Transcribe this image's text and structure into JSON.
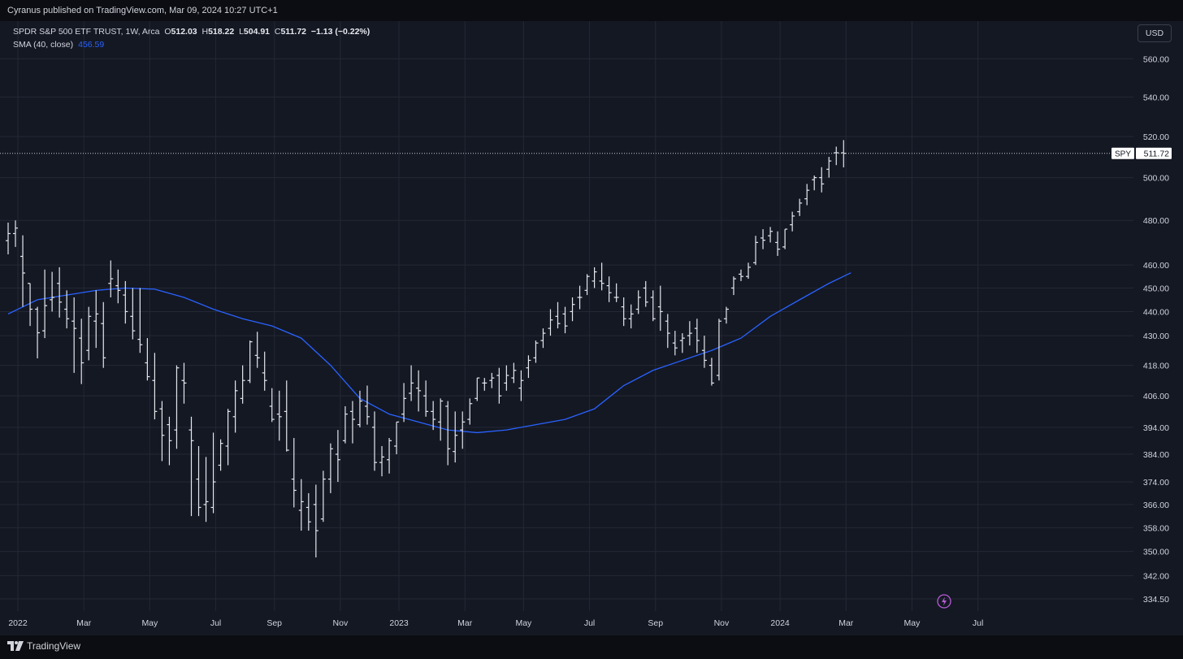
{
  "header": {
    "publisher": "Cyranus published on TradingView.com, Mar 09, 2024 10:27 UTC+1"
  },
  "legend": {
    "symbol": "SPDR S&P 500 ETF TRUST, 1W, Arca",
    "o_label": "O",
    "o_value": "512.03",
    "h_label": "H",
    "h_value": "518.22",
    "l_label": "L",
    "l_value": "504.91",
    "c_label": "C",
    "c_value": "511.72",
    "change": "−1.13 (−0.22%)",
    "indicator": "SMA (40, close)",
    "indicator_value": "456.59"
  },
  "currency_button": "USD",
  "footer": {
    "brand": "TradingView"
  },
  "colors": {
    "background": "#141823",
    "bars": "#e6e8ee",
    "sma": "#2962ff",
    "grid": "#232835",
    "price_line": "#c9ccd4"
  },
  "chart_data": {
    "type": "ohlc-bar",
    "title": "SPDR S&P 500 ETF TRUST, 1W, Arca",
    "interval": "1W",
    "y_scale": "log",
    "ylim": [
      330,
      575
    ],
    "y_ticks": [
      "560.00",
      "540.00",
      "520.00",
      "500.00",
      "480.00",
      "460.00",
      "450.00",
      "440.00",
      "430.00",
      "418.00",
      "406.00",
      "394.00",
      "384.00",
      "374.00",
      "366.00",
      "358.00",
      "350.00",
      "342.00",
      "334.50"
    ],
    "x_ticks": [
      "2022",
      "Mar",
      "May",
      "Jul",
      "Sep",
      "Nov",
      "2023",
      "Mar",
      "May",
      "Jul",
      "Sep",
      "Nov",
      "2024",
      "Mar",
      "May",
      "Jul"
    ],
    "x_tick_weeks": [
      0,
      9,
      18,
      27,
      35,
      44,
      52,
      61,
      69,
      78,
      87,
      96,
      104,
      113,
      122,
      131
    ],
    "last_price_label": {
      "symbol": "SPY",
      "value": "511.72"
    },
    "grid": true,
    "series": [
      {
        "name": "SPY",
        "ohlc": [
          [
            470.8,
            479.0,
            464.7,
            474.0
          ],
          [
            474.0,
            480.0,
            468.0,
            476.5
          ],
          [
            463.8,
            473.2,
            442.0,
            456.5
          ],
          [
            452.0,
            452.0,
            434.0,
            441.0
          ],
          [
            441.0,
            442.0,
            420.8,
            431.2
          ],
          [
            432.0,
            458.0,
            429.0,
            442.5
          ],
          [
            445.0,
            457.0,
            440.0,
            446.0
          ],
          [
            452.0,
            459.0,
            437.5,
            444.0
          ],
          [
            441.0,
            449.0,
            433.0,
            437.0
          ],
          [
            436.0,
            446.0,
            415.0,
            433.0
          ],
          [
            429.0,
            437.0,
            410.6,
            419.0
          ],
          [
            424.0,
            442.0,
            420.0,
            438.0
          ],
          [
            436.0,
            449.0,
            425.0,
            439.0
          ],
          [
            435.0,
            444.0,
            417.0,
            421.0
          ],
          [
            452.0,
            462.0,
            446.0,
            454.0
          ],
          [
            451.0,
            458.0,
            443.5,
            449.0
          ],
          [
            447.0,
            453.0,
            435.0,
            440.0
          ],
          [
            438.0,
            450.0,
            428.5,
            432.0
          ],
          [
            428.5,
            450.0,
            423.0,
            426.3
          ],
          [
            419.0,
            429.0,
            412.0,
            413.5
          ],
          [
            412.0,
            423.0,
            397.0,
            400.0
          ],
          [
            401.0,
            404.0,
            381.5,
            391.0
          ],
          [
            395.0,
            398.0,
            380.0,
            389.0
          ],
          [
            393.0,
            418.0,
            386.0,
            417.0
          ],
          [
            412.0,
            419.0,
            403.0,
            411.0
          ],
          [
            393.0,
            398.0,
            362.0,
            389.0
          ],
          [
            375.0,
            387.0,
            362.0,
            365.0
          ],
          [
            366.0,
            383.0,
            360.0,
            367.0
          ],
          [
            365.0,
            392.0,
            363.0,
            374.0
          ],
          [
            380.0,
            389.5,
            378.0,
            388.0
          ],
          [
            387.0,
            401.0,
            380.0,
            400.0
          ],
          [
            398.0,
            412.0,
            392.0,
            408.0
          ],
          [
            405.0,
            418.0,
            403.0,
            412.0
          ],
          [
            412.0,
            428.0,
            411.0,
            427.5
          ],
          [
            422.0,
            431.6,
            417.0,
            421.0
          ],
          [
            415.0,
            423.5,
            408.0,
            412.0
          ],
          [
            402.0,
            409.0,
            396.0,
            397.0
          ],
          [
            399.0,
            408.0,
            389.0,
            398.0
          ],
          [
            400.0,
            412.0,
            385.0,
            385.5
          ],
          [
            375.0,
            390.0,
            365.0,
            371.0
          ],
          [
            364.0,
            375.0,
            357.0,
            367.0
          ],
          [
            365.0,
            370.0,
            357.0,
            360.0
          ],
          [
            366.0,
            373.0,
            348.0,
            357.0
          ],
          [
            361.0,
            378.0,
            360.0,
            375.0
          ],
          [
            375.0,
            388.0,
            370.0,
            386.0
          ],
          [
            384.0,
            393.0,
            374.0,
            382.0
          ],
          [
            389.0,
            402.0,
            388.0,
            399.0
          ],
          [
            400.0,
            404.0,
            388.0,
            397.0
          ],
          [
            395.0,
            408.0,
            394.0,
            404.0
          ],
          [
            402.0,
            410.0,
            395.0,
            398.0
          ],
          [
            394.0,
            400.0,
            378.0,
            381.0
          ],
          [
            381.0,
            387.0,
            376.0,
            383.0
          ],
          [
            382.0,
            390.0,
            377.0,
            389.0
          ],
          [
            387.0,
            396.0,
            384.0,
            396.0
          ],
          [
            399.0,
            411.0,
            396.0,
            405.0
          ],
          [
            407.0,
            418.0,
            404.0,
            411.0
          ],
          [
            409.0,
            416.0,
            400.0,
            408.0
          ],
          [
            406.0,
            412.0,
            398.0,
            400.0
          ],
          [
            400.0,
            404.0,
            393.0,
            397.0
          ],
          [
            396.0,
            405.0,
            389.0,
            404.0
          ],
          [
            402.0,
            404.0,
            380.0,
            386.0
          ],
          [
            385.0,
            400.0,
            381.0,
            391.0
          ],
          [
            393.0,
            400.0,
            386.0,
            396.0
          ],
          [
            397.0,
            405.0,
            395.0,
            403.0
          ],
          [
            405.0,
            413.0,
            404.0,
            413.0
          ],
          [
            411.0,
            413.0,
            408.0,
            411.0
          ],
          [
            412.0,
            415.0,
            409.0,
            413.0
          ],
          [
            414.0,
            417.0,
            403.0,
            406.0
          ],
          [
            411.0,
            418.0,
            408.0,
            414.0
          ],
          [
            413.0,
            419.0,
            411.0,
            416.0
          ],
          [
            409.0,
            416.0,
            404.0,
            412.0
          ],
          [
            417.0,
            422.0,
            413.0,
            420.0
          ],
          [
            421.0,
            428.0,
            419.0,
            427.0
          ],
          [
            428.0,
            433.0,
            425.0,
            431.0
          ],
          [
            433.0,
            441.0,
            430.0,
            436.5
          ],
          [
            438.0,
            444.0,
            433.0,
            435.0
          ],
          [
            439.0,
            442.0,
            431.0,
            434.0
          ],
          [
            440.0,
            446.0,
            436.0,
            443.0
          ],
          [
            446.0,
            451.0,
            441.0,
            446.0
          ],
          [
            449.0,
            456.0,
            447.0,
            455.0
          ],
          [
            453.0,
            459.0,
            450.0,
            457.0
          ],
          [
            453.0,
            461.0,
            449.0,
            452.0
          ],
          [
            451.0,
            455.0,
            444.0,
            448.0
          ],
          [
            446.0,
            452.0,
            444.0,
            446.0
          ],
          [
            442.0,
            446.0,
            434.0,
            437.0
          ],
          [
            437.0,
            443.0,
            433.0,
            439.0
          ],
          [
            441.0,
            449.0,
            439.0,
            446.0
          ],
          [
            450.0,
            453.0,
            442.0,
            444.0
          ],
          [
            446.0,
            449.0,
            436.0,
            437.0
          ],
          [
            442.0,
            451.0,
            432.0,
            440.0
          ],
          [
            436.0,
            439.0,
            425.0,
            431.0
          ],
          [
            427.0,
            432.0,
            422.0,
            425.0
          ],
          [
            428.0,
            431.0,
            423.0,
            429.0
          ],
          [
            430.0,
            436.0,
            426.0,
            431.0
          ],
          [
            433.0,
            437.0,
            423.0,
            428.0
          ],
          [
            424.0,
            430.0,
            417.0,
            420.0
          ],
          [
            418.0,
            421.0,
            410.0,
            411.0
          ],
          [
            414.0,
            437.0,
            412.0,
            436.0
          ],
          [
            437.0,
            442.0,
            435.0,
            441.0
          ],
          [
            450.0,
            455.0,
            447.0,
            454.0
          ],
          [
            456.0,
            458.0,
            453.0,
            455.0
          ],
          [
            455.0,
            461.0,
            454.0,
            459.0
          ],
          [
            461.0,
            473.0,
            460.0,
            470.0
          ],
          [
            472.0,
            476.0,
            467.0,
            471.0
          ],
          [
            473.0,
            477.0,
            470.0,
            475.0
          ],
          [
            470.0,
            475.0,
            464.0,
            467.0
          ],
          [
            468.0,
            476.0,
            467.0,
            476.0
          ],
          [
            478.0,
            484.0,
            475.0,
            482.0
          ],
          [
            484.0,
            490.0,
            482.0,
            488.0
          ],
          [
            490.0,
            497.0,
            487.0,
            494.0
          ],
          [
            499.0,
            501.0,
            494.0,
            500.0
          ],
          [
            500.0,
            505.0,
            493.0,
            497.0
          ],
          [
            504.0,
            510.0,
            500.0,
            508.0
          ],
          [
            512.0,
            515.0,
            506.0,
            512.0
          ],
          [
            512.0,
            518.22,
            504.91,
            511.72
          ]
        ]
      },
      {
        "name": "SMA (40, close)",
        "weeks": [
          0,
          4,
          8,
          12,
          16,
          20,
          24,
          28,
          32,
          36,
          40,
          44,
          48,
          52,
          56,
          60,
          64,
          68,
          72,
          76,
          80,
          84,
          88,
          92,
          96,
          100,
          104,
          108,
          112,
          115
        ],
        "values": [
          439,
          445,
          447,
          449,
          450,
          449.5,
          446,
          441,
          437,
          434,
          429,
          418,
          405,
          399,
          396,
          393,
          392,
          393,
          395,
          397,
          401,
          410,
          416,
          420,
          424,
          429,
          438,
          445,
          452,
          456.59
        ]
      }
    ]
  }
}
